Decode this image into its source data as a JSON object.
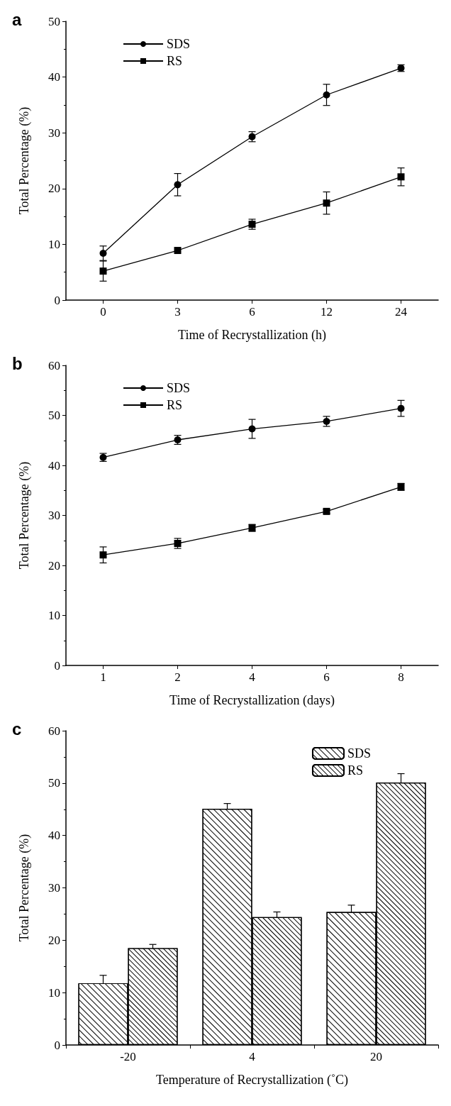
{
  "chart_data": [
    {
      "type": "line",
      "title": "a",
      "xlabel": "Time of Recrystallization (h)",
      "ylabel": "Total Percentage (%)",
      "categories": [
        "0",
        "3",
        "6",
        "12",
        "24"
      ],
      "ylim": [
        0,
        50
      ],
      "yticks": [
        0,
        10,
        20,
        30,
        40,
        50
      ],
      "grid": false,
      "legend": "top left",
      "series": [
        {
          "name": "SDS",
          "color": "#000000",
          "marker": "circle",
          "values": [
            8.4,
            20.7,
            29.3,
            36.8,
            41.6
          ],
          "errors": [
            1.3,
            2.0,
            0.9,
            1.9,
            0.6
          ]
        },
        {
          "name": "RS",
          "color": "#000000",
          "marker": "square",
          "values": [
            5.2,
            8.9,
            13.6,
            17.4,
            22.1
          ],
          "errors": [
            1.8,
            null,
            0.9,
            2.0,
            1.6
          ]
        }
      ]
    },
    {
      "type": "line",
      "title": "b",
      "xlabel": "Time of Recrystallization (days)",
      "ylabel": "Total Percentage (%)",
      "categories": [
        "1",
        "2",
        "4",
        "6",
        "8"
      ],
      "ylim": [
        0,
        60
      ],
      "yticks": [
        0,
        10,
        20,
        30,
        40,
        50,
        60
      ],
      "grid": false,
      "legend": "top left",
      "series": [
        {
          "name": "SDS",
          "color": "#000000",
          "marker": "circle",
          "values": [
            41.6,
            45.1,
            47.3,
            48.8,
            51.4
          ],
          "errors": [
            0.8,
            0.9,
            1.9,
            1.0,
            1.6
          ]
        },
        {
          "name": "RS",
          "color": "#000000",
          "marker": "square",
          "values": [
            22.1,
            24.4,
            27.5,
            30.8,
            35.7
          ],
          "errors": [
            1.6,
            1.0,
            0.7,
            0.4,
            0.7
          ]
        }
      ]
    },
    {
      "type": "bar",
      "title": "c",
      "xlabel": "Temperature of Recrystallization (˚C)",
      "ylabel": "Total Percentage (%)",
      "categories": [
        "-20",
        "4",
        "20"
      ],
      "ylim": [
        0,
        60
      ],
      "yticks": [
        0,
        10,
        20,
        30,
        40,
        50,
        60
      ],
      "grid": false,
      "legend": "top right",
      "series": [
        {
          "name": "SDS",
          "color": "#ffffff",
          "values": [
            11.8,
            45.1,
            25.4
          ],
          "errors": [
            1.5,
            1.0,
            1.3
          ]
        },
        {
          "name": "RS",
          "color": "#ffffff",
          "values": [
            18.5,
            24.4,
            50.1
          ],
          "errors": [
            0.7,
            1.0,
            1.7
          ]
        }
      ]
    }
  ]
}
